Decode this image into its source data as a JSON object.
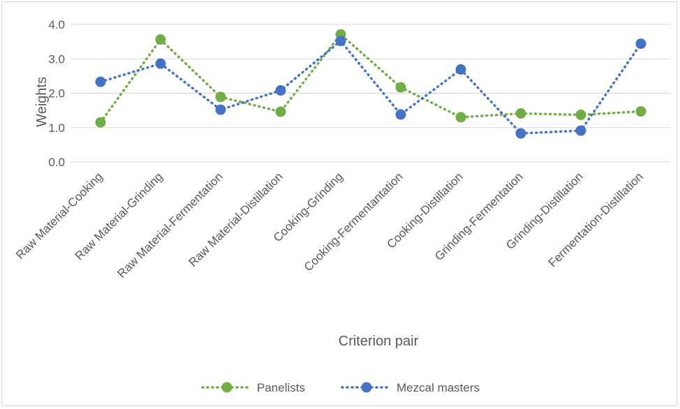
{
  "chart_data": {
    "type": "line",
    "title": "",
    "xlabel": "Criterion pair",
    "ylabel": "Weights",
    "ylim": [
      0,
      4
    ],
    "yticks": [
      "0.0",
      "1.0",
      "2.0",
      "3.0",
      "4.0"
    ],
    "grid": true,
    "legend_position": "bottom",
    "categories": [
      "Raw Material-Cooking",
      "Raw Material-Grinding",
      "Raw Material-Fermentation",
      "Raw Material-Distillation",
      "Cooking-Grinding",
      "Cooking-Fermentantation",
      "Cooking-Distillation",
      "Grinding-Fermentation",
      "Grinding-Distillation",
      "Fermentation-Distillation"
    ],
    "series": [
      {
        "name": "Panelists",
        "color": "#70ad47",
        "values": [
          1.15,
          3.56,
          1.89,
          1.46,
          3.71,
          2.17,
          1.3,
          1.41,
          1.37,
          1.47
        ]
      },
      {
        "name": "Mezcal masters",
        "color": "#4472c4",
        "values": [
          2.33,
          2.86,
          1.52,
          2.08,
          3.52,
          1.38,
          2.69,
          0.83,
          0.91,
          3.44
        ]
      }
    ]
  }
}
